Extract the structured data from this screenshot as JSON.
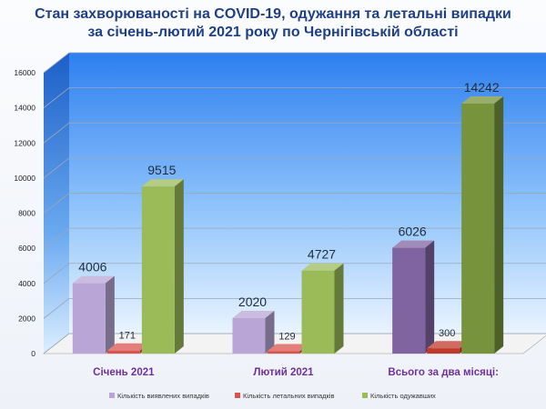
{
  "title": {
    "line1": "Стан захворюваності на COVID-19, одужання та летальні випадки",
    "line2": "за січень-лютий 2021 року по Чернігівській області"
  },
  "chart_data": {
    "type": "bar",
    "categories": [
      "Січень 2021",
      "Лютий 2021",
      "Всього за два місяці:"
    ],
    "series": [
      {
        "name": "Кількість виявлених випадків",
        "values": [
          4006,
          2020,
          6026
        ],
        "color": "#b9a6d6",
        "color_total": "#8064a2"
      },
      {
        "name": "Кількість летальних випадків",
        "values": [
          171,
          129,
          300
        ],
        "color": "#d9534f",
        "color_total": "#c0392b"
      },
      {
        "name": "Кількість одужавших",
        "values": [
          9515,
          4727,
          14242
        ],
        "color": "#9bbb59",
        "color_total": "#77933c"
      }
    ],
    "ylim": [
      0,
      16000
    ],
    "yticks": [
      0,
      2000,
      4000,
      6000,
      8000,
      10000,
      12000,
      14000,
      16000
    ],
    "grid": true,
    "legend_position": "bottom",
    "category_label_color": "#7030a0"
  }
}
